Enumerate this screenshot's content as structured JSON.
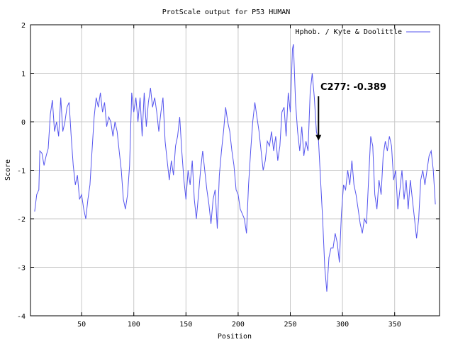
{
  "chart_data": {
    "type": "line",
    "title": "ProtScale output for P53 HUMAN",
    "xlabel": "Position",
    "ylabel": "Score",
    "xlim": [
      1,
      393
    ],
    "ylim": [
      -4,
      2
    ],
    "xticks": [
      50,
      100,
      150,
      200,
      250,
      300,
      350
    ],
    "yticks": [
      -4,
      -3,
      -2,
      -1,
      0,
      1,
      2
    ],
    "grid": true,
    "legend_position": "top-right",
    "series": [
      {
        "name": "Hphob. / Kyte & Doolittle",
        "color": "#5555ee",
        "points": [
          [
            5,
            -1.85
          ],
          [
            7,
            -1.5
          ],
          [
            9,
            -1.4
          ],
          [
            10,
            -0.6
          ],
          [
            12,
            -0.65
          ],
          [
            14,
            -0.9
          ],
          [
            16,
            -0.7
          ],
          [
            18,
            -0.55
          ],
          [
            20,
            0.15
          ],
          [
            22,
            0.45
          ],
          [
            24,
            -0.2
          ],
          [
            26,
            0.0
          ],
          [
            28,
            -0.3
          ],
          [
            30,
            0.5
          ],
          [
            32,
            -0.2
          ],
          [
            34,
            0.0
          ],
          [
            36,
            0.3
          ],
          [
            38,
            0.4
          ],
          [
            40,
            -0.3
          ],
          [
            42,
            -0.9
          ],
          [
            44,
            -1.3
          ],
          [
            46,
            -1.1
          ],
          [
            48,
            -1.6
          ],
          [
            50,
            -1.5
          ],
          [
            52,
            -1.8
          ],
          [
            54,
            -2.0
          ],
          [
            56,
            -1.6
          ],
          [
            58,
            -1.3
          ],
          [
            60,
            -0.6
          ],
          [
            62,
            0.1
          ],
          [
            64,
            0.5
          ],
          [
            66,
            0.3
          ],
          [
            68,
            0.6
          ],
          [
            70,
            0.2
          ],
          [
            72,
            0.4
          ],
          [
            74,
            -0.1
          ],
          [
            76,
            0.1
          ],
          [
            78,
            0.0
          ],
          [
            80,
            -0.3
          ],
          [
            82,
            0.0
          ],
          [
            84,
            -0.2
          ],
          [
            86,
            -0.6
          ],
          [
            88,
            -1.0
          ],
          [
            90,
            -1.6
          ],
          [
            92,
            -1.8
          ],
          [
            94,
            -1.5
          ],
          [
            96,
            -0.9
          ],
          [
            98,
            0.6
          ],
          [
            100,
            0.2
          ],
          [
            102,
            0.5
          ],
          [
            104,
            0.0
          ],
          [
            106,
            0.5
          ],
          [
            108,
            -0.3
          ],
          [
            110,
            0.6
          ],
          [
            112,
            -0.1
          ],
          [
            114,
            0.4
          ],
          [
            116,
            0.7
          ],
          [
            118,
            0.3
          ],
          [
            120,
            0.5
          ],
          [
            122,
            0.2
          ],
          [
            124,
            -0.2
          ],
          [
            126,
            0.2
          ],
          [
            128,
            0.5
          ],
          [
            130,
            -0.4
          ],
          [
            132,
            -0.8
          ],
          [
            134,
            -1.2
          ],
          [
            136,
            -0.8
          ],
          [
            138,
            -1.1
          ],
          [
            140,
            -0.5
          ],
          [
            142,
            -0.3
          ],
          [
            144,
            0.1
          ],
          [
            146,
            -0.6
          ],
          [
            148,
            -1.2
          ],
          [
            150,
            -1.6
          ],
          [
            152,
            -1.0
          ],
          [
            154,
            -1.3
          ],
          [
            156,
            -0.8
          ],
          [
            158,
            -1.6
          ],
          [
            160,
            -2.0
          ],
          [
            162,
            -1.5
          ],
          [
            164,
            -1.0
          ],
          [
            166,
            -0.6
          ],
          [
            168,
            -1.0
          ],
          [
            170,
            -1.4
          ],
          [
            172,
            -1.7
          ],
          [
            174,
            -2.1
          ],
          [
            176,
            -1.6
          ],
          [
            178,
            -1.4
          ],
          [
            180,
            -2.2
          ],
          [
            182,
            -1.1
          ],
          [
            184,
            -0.6
          ],
          [
            186,
            -0.2
          ],
          [
            188,
            0.3
          ],
          [
            190,
            0.0
          ],
          [
            192,
            -0.2
          ],
          [
            194,
            -0.6
          ],
          [
            196,
            -0.9
          ],
          [
            198,
            -1.4
          ],
          [
            200,
            -1.5
          ],
          [
            202,
            -1.8
          ],
          [
            204,
            -1.9
          ],
          [
            206,
            -2.0
          ],
          [
            208,
            -2.3
          ],
          [
            210,
            -1.3
          ],
          [
            212,
            -0.6
          ],
          [
            214,
            0.0
          ],
          [
            216,
            0.4
          ],
          [
            218,
            0.1
          ],
          [
            220,
            -0.2
          ],
          [
            222,
            -0.6
          ],
          [
            224,
            -1.0
          ],
          [
            226,
            -0.8
          ],
          [
            228,
            -0.4
          ],
          [
            230,
            -0.5
          ],
          [
            232,
            -0.2
          ],
          [
            234,
            -0.6
          ],
          [
            236,
            -0.3
          ],
          [
            238,
            -0.8
          ],
          [
            240,
            -0.5
          ],
          [
            242,
            0.2
          ],
          [
            244,
            0.3
          ],
          [
            246,
            -0.3
          ],
          [
            248,
            0.6
          ],
          [
            250,
            0.2
          ],
          [
            252,
            1.5
          ],
          [
            253,
            1.6
          ],
          [
            255,
            0.4
          ],
          [
            257,
            -0.2
          ],
          [
            259,
            -0.6
          ],
          [
            261,
            -0.1
          ],
          [
            263,
            -0.7
          ],
          [
            265,
            -0.4
          ],
          [
            267,
            -0.6
          ],
          [
            269,
            0.6
          ],
          [
            271,
            1.0
          ],
          [
            273,
            0.5
          ],
          [
            275,
            -0.2
          ],
          [
            277,
            -0.389
          ],
          [
            279,
            -1.2
          ],
          [
            281,
            -2.0
          ],
          [
            283,
            -3.0
          ],
          [
            285,
            -3.5
          ],
          [
            287,
            -2.8
          ],
          [
            289,
            -2.6
          ],
          [
            291,
            -2.6
          ],
          [
            293,
            -2.3
          ],
          [
            295,
            -2.5
          ],
          [
            297,
            -2.9
          ],
          [
            299,
            -1.9
          ],
          [
            301,
            -1.3
          ],
          [
            303,
            -1.4
          ],
          [
            305,
            -1.0
          ],
          [
            307,
            -1.3
          ],
          [
            309,
            -0.8
          ],
          [
            311,
            -1.3
          ],
          [
            313,
            -1.5
          ],
          [
            315,
            -1.8
          ],
          [
            317,
            -2.1
          ],
          [
            319,
            -2.3
          ],
          [
            321,
            -2.0
          ],
          [
            323,
            -2.1
          ],
          [
            325,
            -1.2
          ],
          [
            327,
            -0.3
          ],
          [
            329,
            -0.5
          ],
          [
            331,
            -1.5
          ],
          [
            333,
            -1.8
          ],
          [
            335,
            -1.2
          ],
          [
            337,
            -1.5
          ],
          [
            339,
            -0.7
          ],
          [
            341,
            -0.4
          ],
          [
            343,
            -0.6
          ],
          [
            345,
            -0.3
          ],
          [
            347,
            -0.5
          ],
          [
            349,
            -1.2
          ],
          [
            351,
            -1.0
          ],
          [
            353,
            -1.8
          ],
          [
            355,
            -1.4
          ],
          [
            357,
            -1.0
          ],
          [
            359,
            -1.6
          ],
          [
            361,
            -1.2
          ],
          [
            363,
            -1.8
          ],
          [
            365,
            -1.2
          ],
          [
            367,
            -1.6
          ],
          [
            369,
            -2.0
          ],
          [
            371,
            -2.4
          ],
          [
            373,
            -2.0
          ],
          [
            375,
            -1.2
          ],
          [
            377,
            -1.0
          ],
          [
            379,
            -1.3
          ],
          [
            381,
            -1.0
          ],
          [
            383,
            -0.7
          ],
          [
            385,
            -0.6
          ],
          [
            387,
            -1.0
          ],
          [
            389,
            -1.7
          ]
        ]
      }
    ],
    "annotations": [
      {
        "text": "C277: -0.389",
        "x": 277,
        "y": -0.389
      }
    ]
  }
}
